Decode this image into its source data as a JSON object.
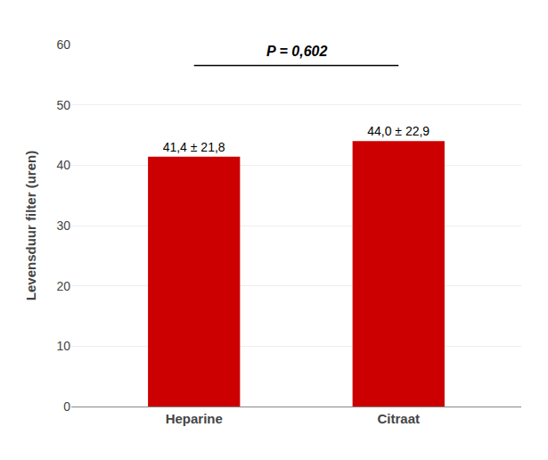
{
  "chart_data": {
    "type": "bar",
    "categories": [
      "Heparine",
      "Citraat"
    ],
    "values": [
      41.4,
      44.0
    ],
    "value_labels": [
      "41,4 ± 21,8",
      "44,0 ± 22,9"
    ],
    "data_labels": true,
    "color": "#CC0000",
    "ylabel": "Levensduur filter (uren)",
    "ylim": [
      0,
      60
    ],
    "yticks": [
      0,
      10,
      20,
      30,
      40,
      50,
      60
    ],
    "grid": true,
    "annotations": [
      {
        "text": "P = 0,602"
      }
    ]
  }
}
